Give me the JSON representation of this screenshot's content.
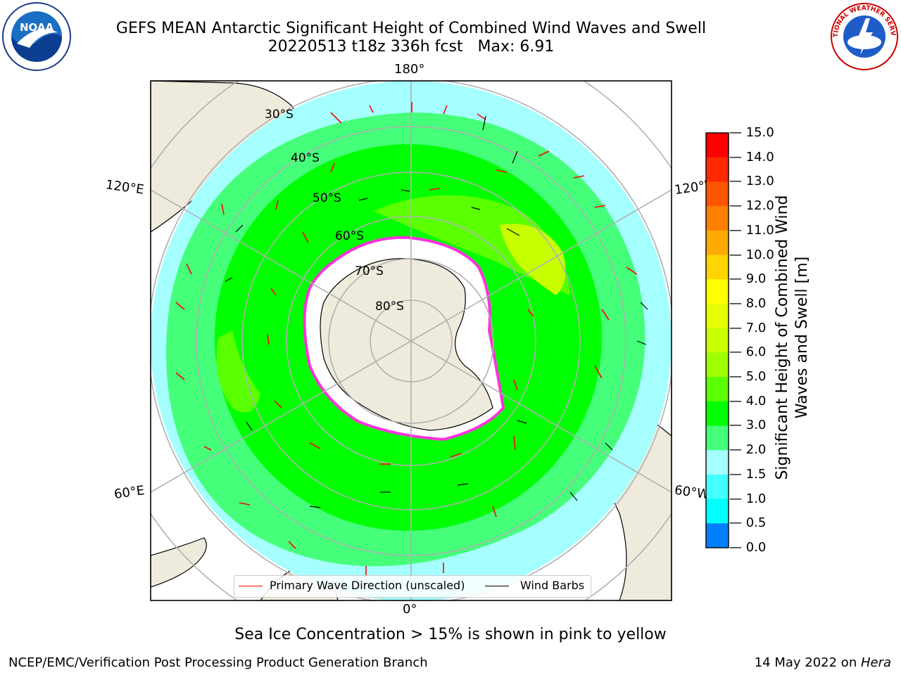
{
  "header": {
    "title": "GEFS MEAN Antarctic Significant Height of Combined Wind Waves and Swell",
    "subtitle": "20220513 t18z 336h fcst   Max: 6.91"
  },
  "logos": {
    "left": "NOAA",
    "right": "NATIONAL WEATHER SERVICE"
  },
  "map": {
    "longitude_labels": {
      "top": "180°",
      "bottom": "0°",
      "left_upper": "120°E",
      "left_lower": "60°E",
      "right_upper": "120°W",
      "right_lower": "60°W"
    },
    "latitude_labels": [
      "30°S",
      "40°S",
      "50°S",
      "60°S",
      "70°S",
      "80°S"
    ]
  },
  "legend": {
    "primary": "Primary Wave Direction (unscaled)",
    "barbs": "Wind Barbs"
  },
  "colorbar": {
    "label": "Significant Height of Combined Wind Waves and Swell [m]",
    "ticks": [
      "15.0",
      "14.0",
      "13.0",
      "12.0",
      "11.0",
      "10.0",
      "9.0",
      "8.0",
      "7.0",
      "6.0",
      "5.0",
      "4.0",
      "3.0",
      "2.0",
      "1.5",
      "1.0",
      "0.5",
      "0.0"
    ],
    "colors": [
      "#ff0000",
      "#ff2a00",
      "#ff5500",
      "#ff7f00",
      "#ffaa00",
      "#ffd400",
      "#ffff00",
      "#e6ff00",
      "#c8ff00",
      "#a0ff00",
      "#5aff00",
      "#00ff00",
      "#45ff7a",
      "#a6ffff",
      "#44ffff",
      "#00ffff",
      "#0080ff",
      "#0000ff"
    ]
  },
  "footer": {
    "caption": "Sea Ice Concentration > 15% is shown in pink to yellow",
    "left": "NCEP/EMC/Verification Post Processing Product Generation Branch",
    "date": "14 May 2022 on ",
    "host": "Hera"
  }
}
